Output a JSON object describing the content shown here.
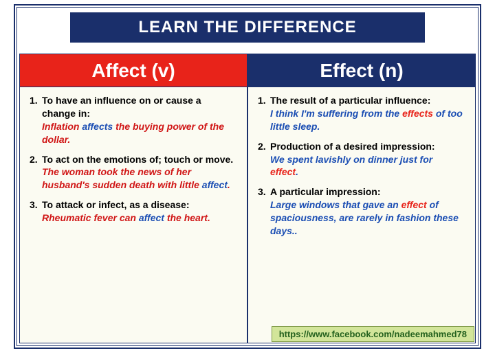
{
  "title": "LEARN THE DIFFERENCE",
  "colors": {
    "frame": "#1a2f6b",
    "left_header_bg": "#e8231a",
    "right_header_bg": "#1a2f6b",
    "body_bg": "#fbfbf2",
    "example_red": "#d01515",
    "example_blue": "#1a4db3",
    "keyword_red": "#e8231a",
    "keyword_blue": "#1a4db3",
    "footer_bg": "#d2e59a",
    "footer_text": "#24611e"
  },
  "left": {
    "header": "Affect (v)",
    "items": [
      {
        "num": "1.",
        "def": "To have an influence on or cause a change in:",
        "example_style": "red",
        "ex_pre": "Inflation ",
        "ex_kw": "affects",
        "ex_kw_style": "blue",
        "ex_post": " the buying power of the dollar."
      },
      {
        "num": "2.",
        "def": "To act on the emotions of; touch or move.",
        "example_style": "red",
        "ex_pre": "The woman took the news of her husband's sudden death with little ",
        "ex_kw": "affect",
        "ex_kw_style": "blue",
        "ex_post": "."
      },
      {
        "num": "3.",
        "def": "To attack or infect, as a disease:",
        "example_style": "red",
        "ex_pre": "Rheumatic fever can ",
        "ex_kw": "affect",
        "ex_kw_style": "blue",
        "ex_post": "      the heart."
      }
    ]
  },
  "right": {
    "header": "Effect (n)",
    "items": [
      {
        "num": "1.",
        "def": "The result of a particular influence:",
        "example_style": "blue",
        "ex_pre": "I think I'm suffering from the ",
        "ex_kw": "effects",
        "ex_kw_style": "red",
        "ex_post": " of too little sleep."
      },
      {
        "num": "2.",
        "def": "Production of a desired impression:",
        "example_style": "blue",
        "ex_pre": "We spent lavishly on dinner just for ",
        "ex_kw": "effect",
        "ex_kw_style": "red",
        "ex_post": "."
      },
      {
        "num": "3.",
        "def": "A particular impression:",
        "example_style": "blue",
        "ex_pre": "Large windows that gave an ",
        "ex_kw": "effect",
        "ex_kw_style": "red",
        "ex_post": " of spaciousness, are rarely in fashion these days.."
      }
    ]
  },
  "footer": "https://www.facebook.com/nadeemahmed78"
}
